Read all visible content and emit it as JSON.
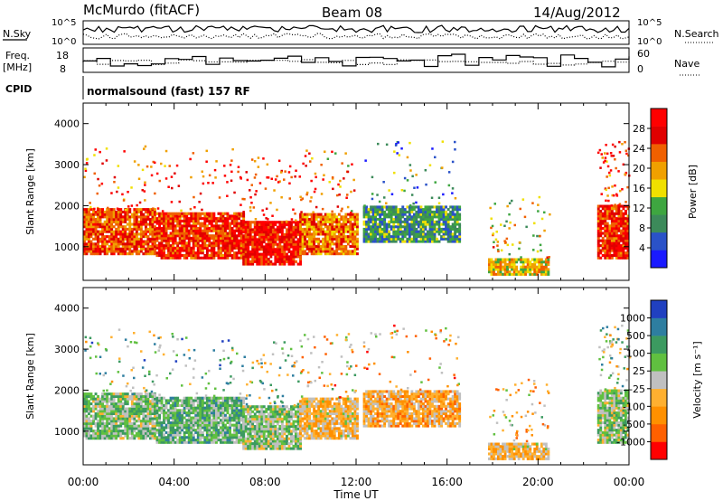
{
  "header": {
    "station": "McMurdo (fitACF)",
    "beam": "Beam 08",
    "date": "14/Aug/2012"
  },
  "strip": {
    "left_labels": [
      "N.Sky",
      "Freq.",
      "[MHz]",
      "CPID"
    ],
    "right_labels": [
      "N.Search",
      "Nave"
    ],
    "noise_ticks_left": [
      "10^5",
      "10^0"
    ],
    "noise_ticks_right": [
      "10^5",
      "10^0"
    ],
    "freq_ticks": [
      "18",
      "8"
    ],
    "nave_ticks": [
      "60",
      "0"
    ],
    "cpid_text": "normalsound (fast) 157 RF"
  },
  "colors": {
    "power_scale": [
      "#1a1aff",
      "#2a52c8",
      "#3c8a5a",
      "#3ea640",
      "#f0e000",
      "#f0a000",
      "#f06000",
      "#e00000",
      "#ff0000"
    ],
    "velocity_scale": [
      "#ff0000",
      "#ff6000",
      "#ff9000",
      "#ffb030",
      "#c0c0c0",
      "#60c040",
      "#3c9a60",
      "#2e7ea0",
      "#2040c0"
    ]
  },
  "chart_data": [
    {
      "type": "heatmap",
      "name": "power",
      "xlabel": "Time UT",
      "ylabel": "Slant Range [km]",
      "x_ticks": [
        "00:00",
        "04:00",
        "08:00",
        "12:00",
        "16:00",
        "20:00",
        "00:00"
      ],
      "y_ticks": [
        "1000",
        "2000",
        "3000",
        "4000"
      ],
      "colorbar_label": "Power [dB]",
      "colorbar_ticks": [
        "4",
        "8",
        "12",
        "16",
        "20",
        "24",
        "28"
      ],
      "xlim": [
        0,
        24
      ],
      "ylim": [
        180,
        4500
      ],
      "echo_bands": [
        {
          "t_start": 0.0,
          "t_end": 3.2,
          "range_low": 800,
          "range_high": 1900,
          "power": 24
        },
        {
          "t_start": 3.2,
          "t_end": 7.0,
          "range_low": 700,
          "range_high": 1800,
          "power": 26
        },
        {
          "t_start": 7.0,
          "t_end": 9.5,
          "range_low": 550,
          "range_high": 1600,
          "power": 28
        },
        {
          "t_start": 9.5,
          "t_end": 12.0,
          "range_low": 800,
          "range_high": 1800,
          "power": 22
        },
        {
          "t_start": 12.3,
          "t_end": 16.5,
          "range_low": 1100,
          "range_high": 2000,
          "power": 10
        },
        {
          "t_start": 17.8,
          "t_end": 20.5,
          "range_low": 300,
          "range_high": 700,
          "power": 18
        },
        {
          "t_start": 22.6,
          "t_end": 24.0,
          "range_low": 700,
          "range_high": 2000,
          "power": 26
        }
      ]
    },
    {
      "type": "heatmap",
      "name": "velocity",
      "xlabel": "Time UT",
      "ylabel": "Slant Range [km]",
      "x_ticks": [
        "00:00",
        "04:00",
        "08:00",
        "12:00",
        "16:00",
        "20:00",
        "00:00"
      ],
      "y_ticks": [
        "1000",
        "2000",
        "3000",
        "4000"
      ],
      "colorbar_label": "Velocity [m s⁻¹]",
      "colorbar_ticks": [
        "-1000",
        "-500",
        "-100",
        "-25",
        "25",
        "100",
        "500",
        "1000"
      ],
      "xlim": [
        0,
        24
      ],
      "ylim": [
        180,
        4500
      ],
      "echo_bands": [
        {
          "t_start": 0.0,
          "t_end": 3.2,
          "range_low": 800,
          "range_high": 1900,
          "velocity": 200
        },
        {
          "t_start": 3.2,
          "t_end": 7.0,
          "range_low": 700,
          "range_high": 1800,
          "velocity": 300
        },
        {
          "t_start": 7.0,
          "t_end": 9.5,
          "range_low": 550,
          "range_high": 1600,
          "velocity": 150
        },
        {
          "t_start": 9.5,
          "t_end": 12.0,
          "range_low": 800,
          "range_high": 1800,
          "velocity": -200
        },
        {
          "t_start": 12.3,
          "t_end": 16.5,
          "range_low": 1100,
          "range_high": 2000,
          "velocity": -300
        },
        {
          "t_start": 17.8,
          "t_end": 20.5,
          "range_low": 300,
          "range_high": 700,
          "velocity": -200
        },
        {
          "t_start": 22.6,
          "t_end": 24.0,
          "range_low": 700,
          "range_high": 2000,
          "velocity": 150
        }
      ]
    }
  ]
}
